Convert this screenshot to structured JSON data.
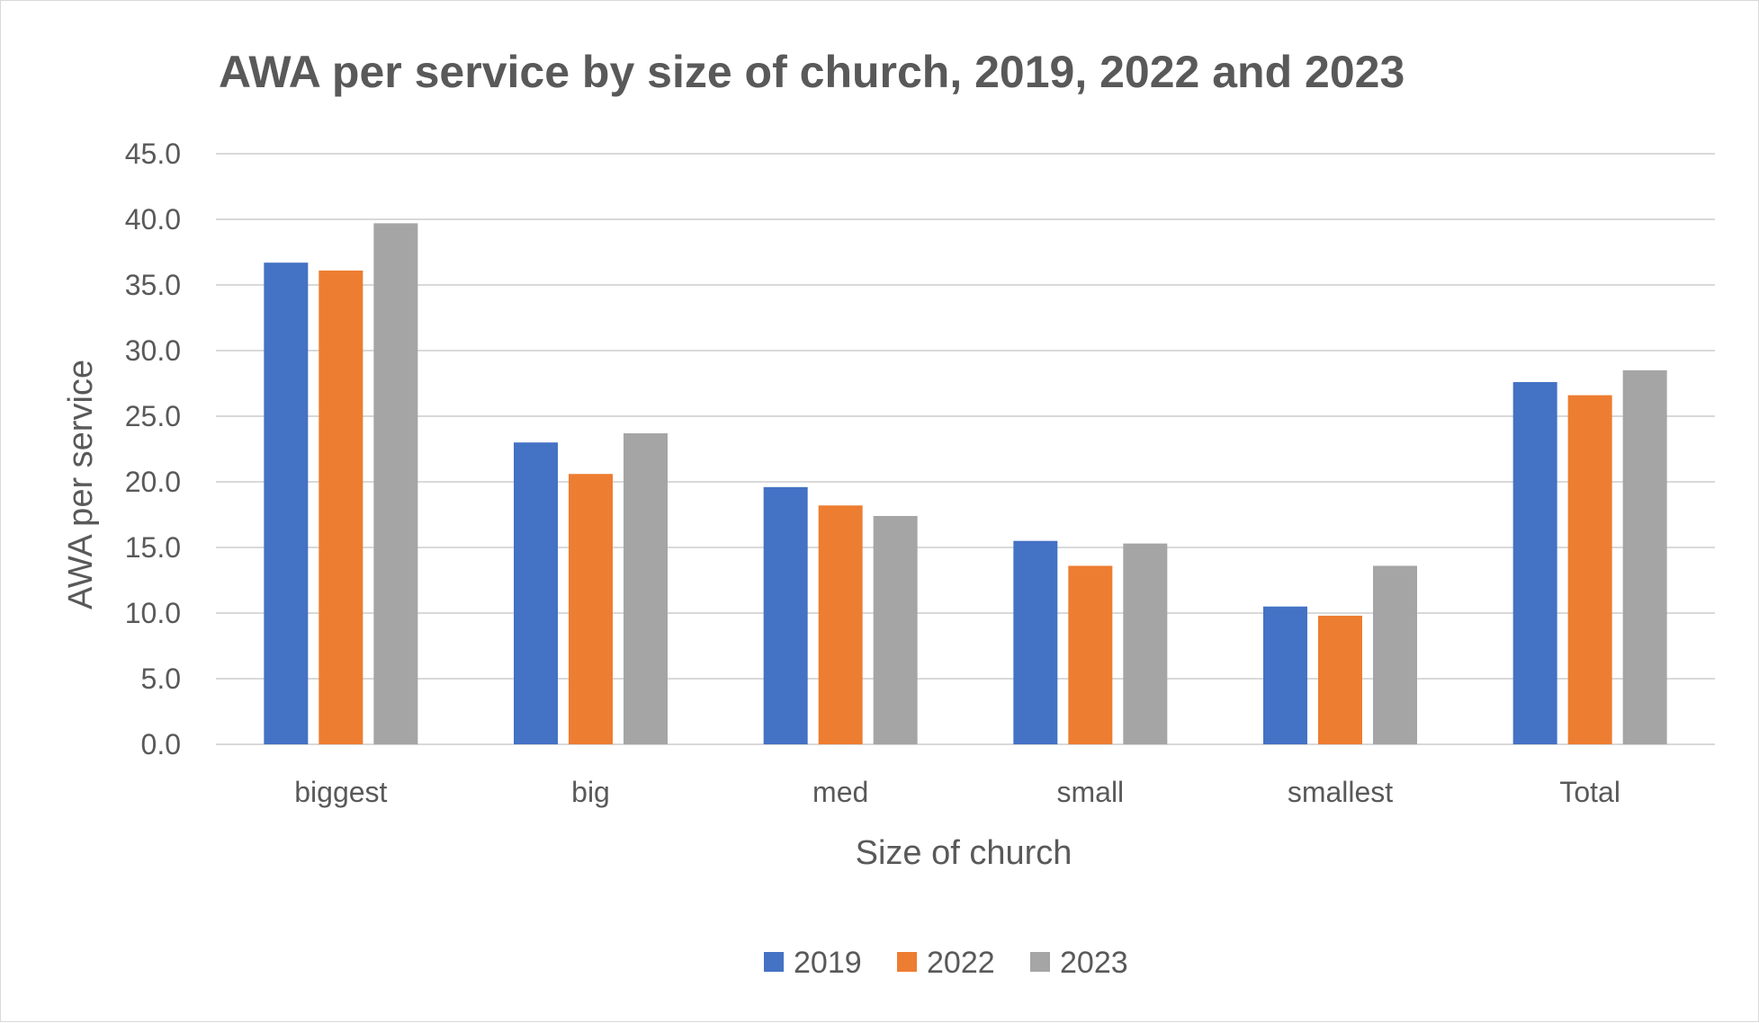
{
  "chart_data": {
    "type": "bar",
    "title": "AWA per service by size of church, 2019, 2022 and 2023",
    "xlabel": "Size of church",
    "ylabel": "AWA per service",
    "categories": [
      "biggest",
      "big",
      "med",
      "small",
      "smallest",
      "Total"
    ],
    "series": [
      {
        "name": "2019",
        "color": "#4472c4",
        "values": [
          36.7,
          23.0,
          19.6,
          15.5,
          10.5,
          27.6
        ]
      },
      {
        "name": "2022",
        "color": "#ed7d31",
        "values": [
          36.1,
          20.6,
          18.2,
          13.6,
          9.8,
          26.6
        ]
      },
      {
        "name": "2023",
        "color": "#a5a5a5",
        "values": [
          39.7,
          23.7,
          17.4,
          15.3,
          13.6,
          28.5
        ]
      }
    ],
    "ylim": [
      0,
      45
    ],
    "yticks": [
      "0.0",
      "5.0",
      "10.0",
      "15.0",
      "20.0",
      "25.0",
      "30.0",
      "35.0",
      "40.0",
      "45.0"
    ],
    "grid": true,
    "legend_position": "bottom"
  }
}
